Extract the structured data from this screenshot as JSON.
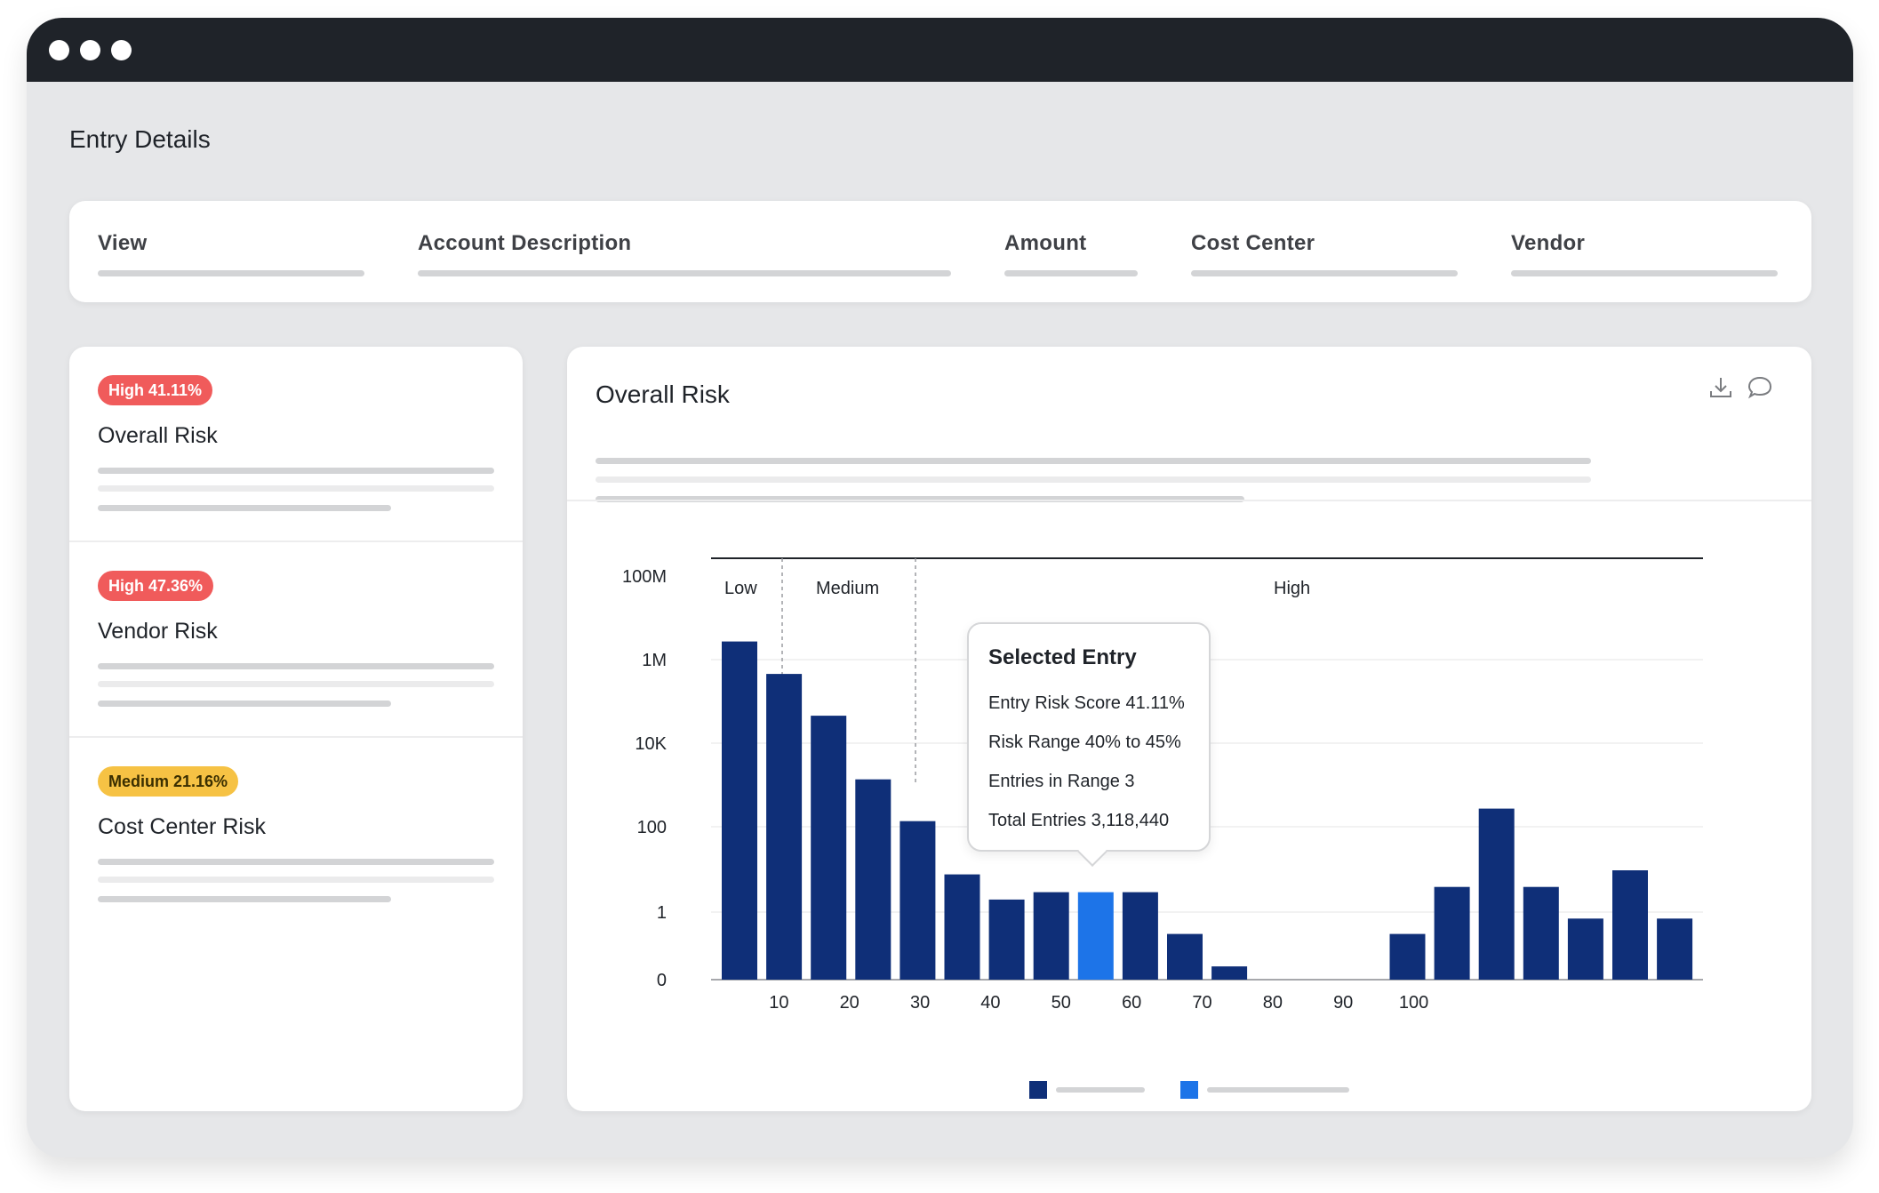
{
  "page": {
    "title": "Entry Details"
  },
  "filters": [
    {
      "label": "View"
    },
    {
      "label": "Account Description"
    },
    {
      "label": "Amount"
    },
    {
      "label": "Cost Center"
    },
    {
      "label": "Vendor"
    }
  ],
  "risk_cards": [
    {
      "badge": "High 41.11%",
      "level": "high",
      "title": "Overall Risk"
    },
    {
      "badge": "High 47.36%",
      "level": "high",
      "title": "Vendor Risk"
    },
    {
      "badge": "Medium 21.16%",
      "level": "medium",
      "title": "Cost Center Risk"
    }
  ],
  "panel": {
    "title": "Overall Risk",
    "icons": [
      "download-icon",
      "comment-icon"
    ]
  },
  "tooltip": {
    "title": "Selected Entry",
    "rows": [
      "Entry Risk Score 41.11%",
      "Risk Range 40% to 45%",
      "Entries in Range 3",
      "Total Entries 3,118,440"
    ]
  },
  "colors": {
    "bar": "#0f2f78",
    "selected": "#1d74e8",
    "high_badge": "#f05b5b",
    "medium_badge": "#f6c244"
  },
  "chart_data": {
    "type": "bar",
    "yscale": "log",
    "y_ticks": [
      "0",
      "1",
      "100",
      "10K",
      "1M",
      "100M"
    ],
    "x_ticks": [
      "10",
      "20",
      "30",
      "40",
      "50",
      "60",
      "70",
      "80",
      "90",
      "100"
    ],
    "zones": [
      "Low",
      "Medium",
      "High"
    ],
    "bins": [
      "0-5",
      "5-10",
      "10-15",
      "15-20",
      "20-25",
      "25-30",
      "30-35",
      "35-40",
      "40-45",
      "45-50",
      "50-55",
      "55-60",
      "60-65",
      "65-70",
      "70-75",
      "75-80",
      "80-85",
      "85-90",
      "90-95",
      "95-100",
      "100-105",
      "105-110"
    ],
    "values": [
      3000000,
      500000,
      50000,
      1500,
      150,
      8,
      2,
      3,
      3,
      3,
      0.3,
      0.05,
      0.02,
      0.02,
      0.005,
      0.3,
      4,
      300,
      4,
      0.7,
      10,
      0.7
    ],
    "selected_index": 8
  }
}
